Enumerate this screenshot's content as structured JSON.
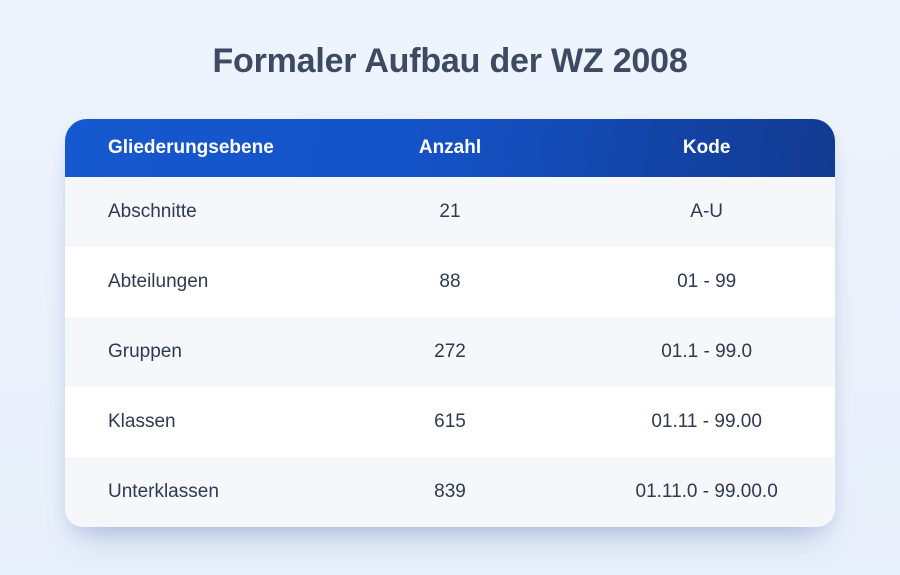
{
  "colors": {
    "page_background_top": "#EEF4FD",
    "page_background_bottom": "#E7EFFA",
    "title_text": "#3D4A61",
    "header_gradient_start": "#1658CF",
    "header_gradient_end": "#123A90",
    "header_text": "#FFFFFF",
    "row_stripe": "#F5F7FB",
    "row_base": "#FFFFFF",
    "cell_text": "#2E3A52"
  },
  "chart_data": {
    "type": "table",
    "title": "Formaler Aufbau der WZ 2008",
    "columns": [
      "Gliederungsebene",
      "Anzahl",
      "Kode"
    ],
    "rows": [
      [
        "Abschnitte",
        "21",
        "A-U"
      ],
      [
        "Abteilungen",
        "88",
        "01 - 99"
      ],
      [
        "Gruppen",
        "272",
        "01.1 - 99.0"
      ],
      [
        "Klassen",
        "615",
        "01.11 - 99.00"
      ],
      [
        "Unterklassen",
        "839",
        "01.11.0 - 99.00.0"
      ]
    ],
    "anzahl_numeric": [
      21,
      88,
      272,
      615,
      839
    ],
    "layout_hints": {
      "first_column_alignment": "left",
      "other_columns_alignment": "center",
      "zebra_striping": "odd rows tinted"
    }
  }
}
